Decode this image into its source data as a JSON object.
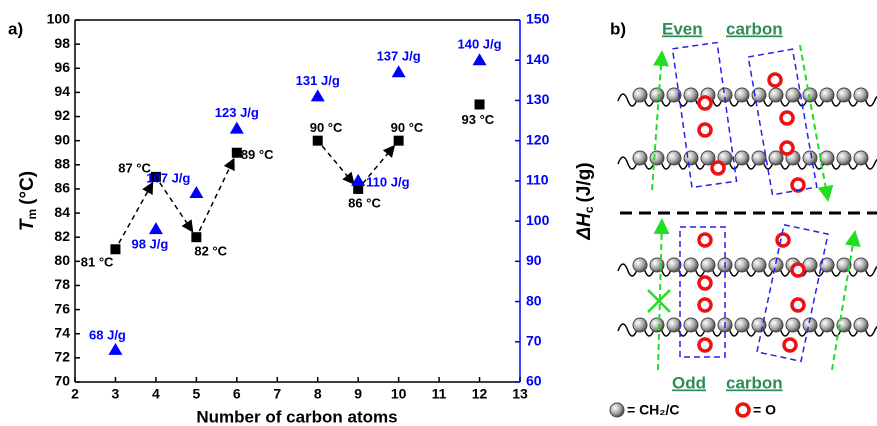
{
  "chart_data": {
    "type": "scatter",
    "panel_label": "a)",
    "x_label": "Number of carbon atoms",
    "y_label": {
      "symbol": "T",
      "subscript": "m",
      "unit": "(°C)"
    },
    "y2_label": {
      "symbol": "ΔH",
      "subscript": "c",
      "unit": "(J/g)"
    },
    "xlim": [
      2,
      13
    ],
    "xticks": [
      2,
      3,
      4,
      5,
      6,
      7,
      8,
      9,
      10,
      11,
      12,
      13
    ],
    "ylim": [
      70,
      100
    ],
    "yticks": [
      70,
      72,
      74,
      76,
      78,
      80,
      82,
      84,
      86,
      88,
      90,
      92,
      94,
      96,
      98,
      100
    ],
    "y2lim": [
      60,
      150
    ],
    "y2ticks": [
      60,
      70,
      80,
      90,
      100,
      110,
      120,
      130,
      140,
      150
    ],
    "series": [
      {
        "color": "#000000",
        "marker": "square",
        "x": [
          3,
          4,
          5,
          6,
          8,
          9,
          10,
          12
        ],
        "values": [
          81,
          87,
          82,
          89,
          90,
          86,
          90,
          93
        ],
        "value_labels": [
          "81 °C",
          "87 °C",
          "82 °C",
          "89 °C",
          "90 °C",
          "86 °C",
          "90 °C",
          "93 °C"
        ]
      },
      {
        "color": "#0000ff",
        "marker": "triangle",
        "axis": "y2",
        "x": [
          3,
          4,
          5,
          6,
          8,
          9,
          10,
          12
        ],
        "values": [
          68,
          98,
          107,
          123,
          131,
          110,
          137,
          140
        ],
        "value_labels": [
          "68 J/g",
          "98 J/g",
          "107 J/g",
          "123 J/g",
          "131 J/g",
          "110 J/g",
          "137 J/g",
          "140 J/g"
        ]
      }
    ]
  },
  "diagram": {
    "panel_label": "b)",
    "top_label": [
      "Even",
      "carbon"
    ],
    "bottom_label": [
      "Odd",
      "carbon"
    ],
    "legend": [
      "= CH₂/C",
      "= O"
    ]
  }
}
